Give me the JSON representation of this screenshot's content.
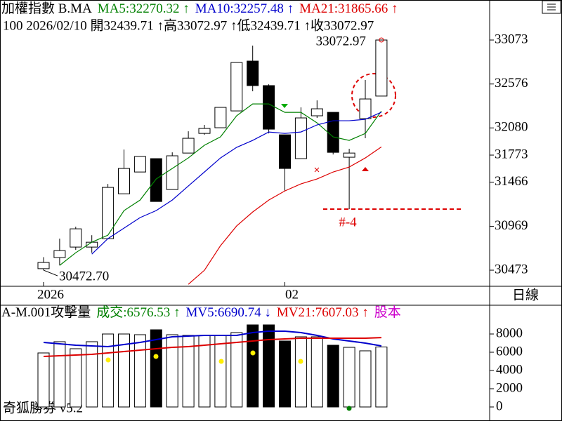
{
  "chart_data": [
    {
      "type": "candlestick",
      "title_parts": [
        {
          "text": "加權指數 B.MA",
          "color": "#000000"
        },
        {
          "text": "MA5:32270.32 ↑",
          "color": "#008000"
        },
        {
          "text": "MA10:32257.48 ↑",
          "color": "#0000cc"
        },
        {
          "text": "MA21:31865.66 ↑",
          "color": "#dd0000"
        }
      ],
      "info": "100 2026/02/10 開32439.71 ↑高33072.97 ↑低32439.71 ↑收33072.97",
      "categories": [
        "2026",
        null,
        null,
        null,
        null,
        null,
        null,
        null,
        null,
        null,
        null,
        null,
        null,
        null,
        null,
        "02",
        null,
        null,
        null,
        null,
        null,
        null
      ],
      "open": [
        30490,
        30615,
        30734,
        30734,
        30829,
        31336,
        31582,
        31733,
        31384,
        31796,
        32018,
        32082,
        32272,
        32835,
        32558,
        32002,
        31733,
        32217,
        32256,
        31749,
        32185,
        32439.71
      ],
      "high": [
        30620,
        30829,
        30964,
        30868,
        31447,
        31836,
        31757,
        31733,
        31804,
        32042,
        32114,
        32312,
        32819,
        33010,
        32573,
        32002,
        32312,
        32391,
        32256,
        31844,
        32621,
        33072.97
      ],
      "low": [
        30472.7,
        30527,
        30702,
        30670,
        30829,
        31336,
        31582,
        31249,
        31384,
        31796,
        32002,
        32082,
        32272,
        32494,
        32018,
        31368,
        31733,
        32193,
        31780,
        31162,
        31963,
        32439.71
      ],
      "close": [
        30560,
        30694,
        30940,
        30789,
        31408,
        31622,
        31757,
        31249,
        31765,
        31963,
        32074,
        32312,
        32819,
        32558,
        32066,
        31622,
        32193,
        32296,
        31804,
        31796,
        32407,
        33072.97
      ],
      "series": [
        {
          "color": "#008000",
          "values": [
            null,
            30527,
            30670,
            30789,
            30868,
            31146,
            31265,
            31503,
            31622,
            31741,
            31884,
            31979,
            32217,
            32351,
            32351,
            32256,
            32256,
            32137,
            31979,
            31939,
            32018,
            32270.32
          ]
        },
        {
          "color": "#0000cc",
          "values": [
            null,
            null,
            null,
            30654,
            30829,
            30948,
            31067,
            31146,
            31265,
            31424,
            31582,
            31741,
            31860,
            31939,
            32034,
            32018,
            32034,
            32114,
            32161,
            32161,
            32177,
            32257.48
          ]
        },
        {
          "color": "#dd0000",
          "values": [
            null,
            null,
            null,
            null,
            null,
            null,
            null,
            null,
            null,
            30313,
            30472,
            30750,
            30972,
            31130,
            31265,
            31368,
            31448,
            31503,
            31582,
            31638,
            31741,
            31865.66
          ]
        }
      ],
      "ylim": [
        30291,
        33525
      ],
      "yticks": [
        33073,
        32576,
        32080,
        31773,
        31466,
        30969,
        30473
      ],
      "high_label": "33072.97",
      "low_label": "30472.70",
      "mark_label": "#-4"
    },
    {
      "type": "bar",
      "title_parts": [
        {
          "text": "A-M.001攻擊量",
          "color": "#000000"
        },
        {
          "text": "成交:6576.53 ↑",
          "color": "#008000"
        },
        {
          "text": "MV5:6690.74 ↓",
          "color": "#0000cc"
        },
        {
          "text": "MV21:7607.03 ↑",
          "color": "#dd0000"
        },
        {
          "text": "股本",
          "color": "#cc00cc"
        }
      ],
      "values": [
        5923,
        7154,
        6385,
        7154,
        8000,
        8000,
        7923,
        8462,
        7923,
        7846,
        7846,
        7846,
        8154,
        9000,
        9000,
        7231,
        7692,
        7692,
        6769,
        6538,
        6154,
        6576.53
      ],
      "series": [
        {
          "color": "#0000cc",
          "values": [
            7077,
            6923,
            6769,
            6692,
            6615,
            6846,
            7077,
            7385,
            7692,
            7769,
            7846,
            7846,
            7846,
            8154,
            8308,
            8308,
            8154,
            7846,
            7462,
            7231,
            7000,
            6690.74
          ]
        },
        {
          "color": "#dd0000",
          "values": [
            5538,
            5615,
            5692,
            5769,
            5923,
            6077,
            6231,
            6385,
            6538,
            6615,
            6769,
            6923,
            7077,
            7231,
            7385,
            7462,
            7538,
            7538,
            7538,
            7538,
            7538,
            7607.03
          ]
        }
      ],
      "ylim": [
        0,
        11000
      ],
      "yticks": [
        8000,
        6000,
        4000,
        2000,
        0
      ]
    }
  ],
  "period_label": "日線",
  "footer": "奇狐勝券 v5.2"
}
